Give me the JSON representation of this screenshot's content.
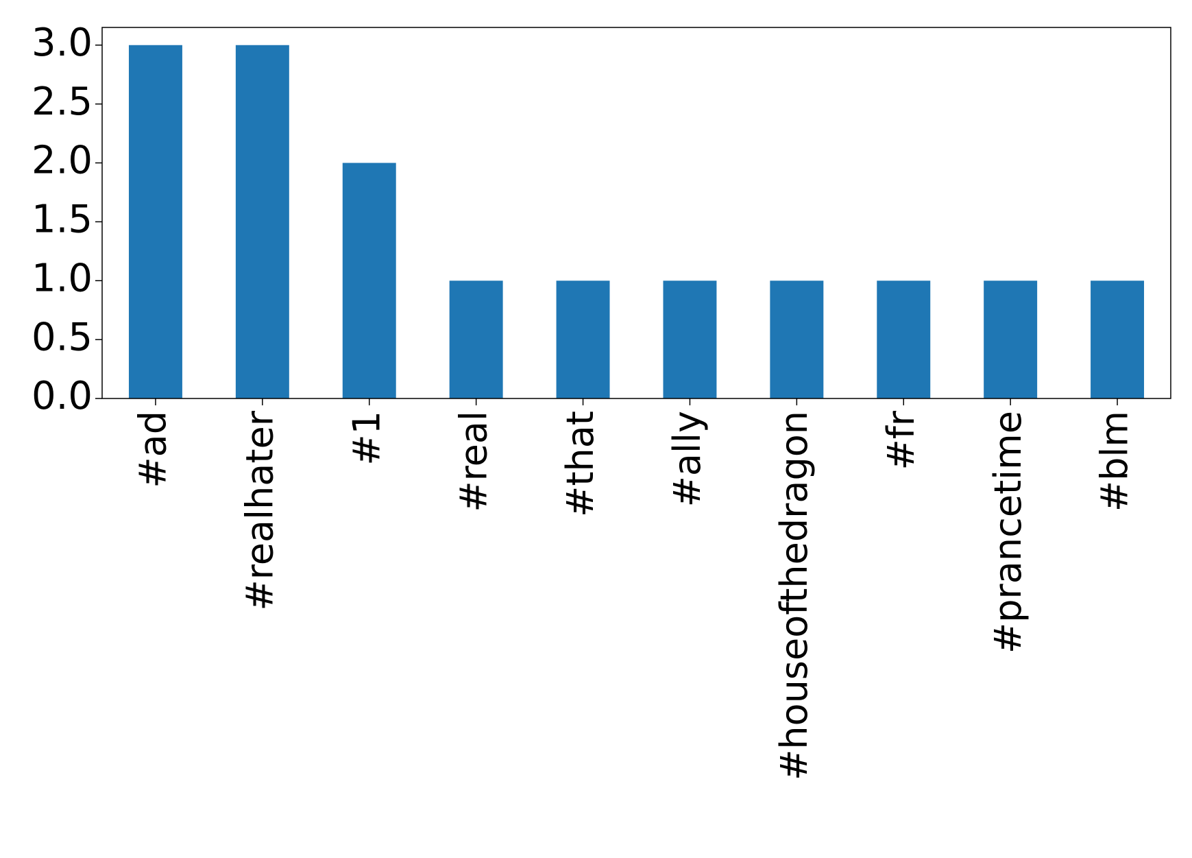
{
  "chart_data": {
    "type": "bar",
    "categories": [
      "#ad",
      "#realhater",
      "#1",
      "#real",
      "#that",
      "#ally",
      "#houseofthedragon",
      "#fr",
      "#prancetime",
      "#blm"
    ],
    "values": [
      3,
      3,
      2,
      1,
      1,
      1,
      1,
      1,
      1,
      1
    ],
    "color": "#1f77b4",
    "ylim": [
      0,
      3.15
    ],
    "yticks": [
      {
        "value": 0,
        "label": "0.0"
      },
      0.5,
      {
        "value": 1,
        "label": "1.0"
      },
      1.5,
      {
        "value": 2,
        "label": "2.0"
      },
      2.5,
      {
        "value": 3,
        "label": "3.0"
      }
    ],
    "grid": false
  }
}
